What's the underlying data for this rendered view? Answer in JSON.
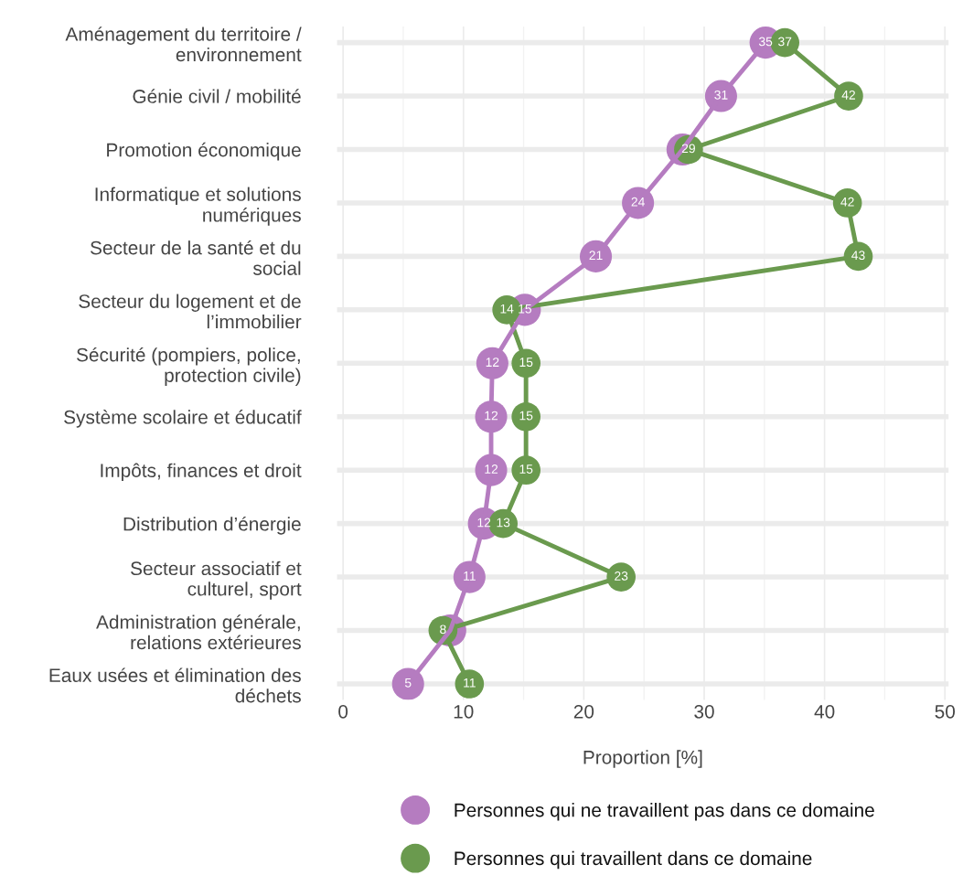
{
  "chart_data": {
    "type": "line",
    "orientation": "horizontal",
    "xlabel": "Proportion [%]",
    "categories": [
      "Aménagement du territoire /\nenvironnement",
      "Génie civil / mobilité",
      "Promotion économique",
      "Informatique et solutions\nnumériques",
      "Secteur de la santé et du\nsocial",
      "Secteur du logement et de\nl’immobilier",
      "Sécurité (pompiers, police,\nprotection civile)",
      "Système scolaire et éducatif",
      "Impôts, finances et droit",
      "Distribution d’énergie",
      "Secteur associatif et\nculturel, sport",
      "Administration générale,\nrelations extérieures",
      "Eaux usées et élimination des\ndéchets"
    ],
    "series": [
      {
        "name": "Personnes qui ne travaillent pas dans ce domaine",
        "color": "#b57cc0",
        "values": [
          35.1,
          31.4,
          28.2,
          24.5,
          21.0,
          15.1,
          12.4,
          12.3,
          12.3,
          11.7,
          10.5,
          8.9,
          5.4
        ],
        "value_labels": [
          "35",
          "31",
          null,
          "24",
          "21",
          "15",
          "12",
          "12",
          "12",
          "12",
          "11",
          null,
          "5"
        ]
      },
      {
        "name": "Personnes qui travaillent dans ce domaine",
        "color": "#6a9a4e",
        "values": [
          36.7,
          42.0,
          28.7,
          41.9,
          42.8,
          13.6,
          15.2,
          15.2,
          15.2,
          13.3,
          23.1,
          8.3,
          10.5
        ],
        "value_labels": [
          "37",
          "42",
          "29",
          "42",
          "43",
          "14",
          "15",
          "15",
          "15",
          "13",
          "23",
          "8",
          "11"
        ]
      }
    ],
    "xlim": [
      -0.5,
      50.3
    ],
    "xticks": [
      0,
      10,
      20,
      30,
      40,
      50
    ],
    "grid": true,
    "legend": "bottom",
    "marker": "circle",
    "line_style": "solid"
  }
}
